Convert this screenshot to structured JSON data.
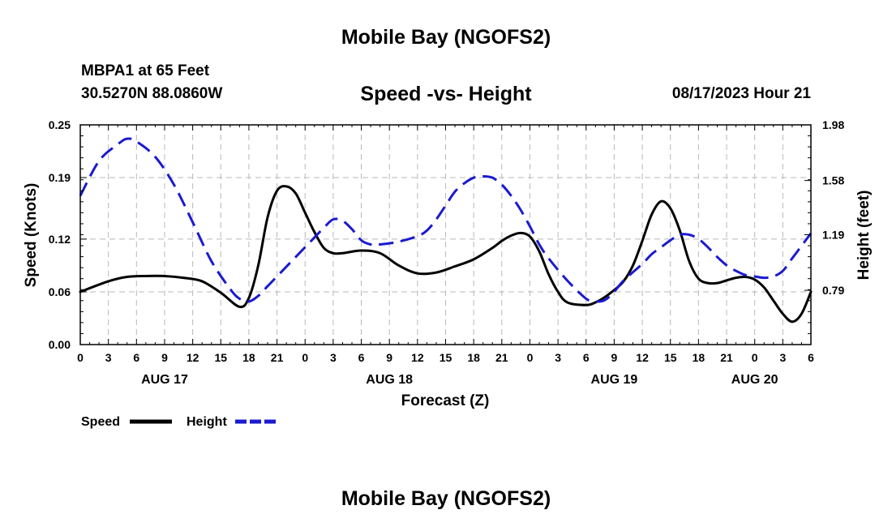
{
  "header": {
    "title": "Mobile Bay (NGOFS2)",
    "station": "MBPA1 at 65 Feet",
    "coords": "30.5270N  88.0860W",
    "subtitle": "Speed -vs- Height",
    "datetime": "08/17/2023 Hour 21"
  },
  "footer": {
    "title": "Mobile Bay (NGOFS2)"
  },
  "chart_data": {
    "type": "line",
    "xlabel": "Forecast (Z)",
    "x_unit": "hours from 00Z AUG 17",
    "xlim": [
      0,
      78
    ],
    "x_tick_labels": [
      "0",
      "3",
      "6",
      "9",
      "12",
      "15",
      "18",
      "21",
      "0",
      "3",
      "6",
      "9",
      "12",
      "15",
      "18",
      "21",
      "0",
      "3",
      "6",
      "9",
      "12",
      "15",
      "18",
      "21",
      "0",
      "3",
      "6"
    ],
    "date_labels": [
      {
        "text": "AUG 17",
        "hour": 9
      },
      {
        "text": "AUG 18",
        "hour": 33
      },
      {
        "text": "AUG 19",
        "hour": 57
      },
      {
        "text": "AUG 20",
        "hour": 72
      }
    ],
    "y_left": {
      "label": "Speed (Knots)",
      "lim": [
        0,
        0.25
      ],
      "ticks": [
        0.0,
        0.06,
        0.12,
        0.19,
        0.25
      ],
      "tick_labels": [
        "0.00",
        "0.06",
        "0.12",
        "0.19",
        "0.25"
      ]
    },
    "y_right": {
      "label": "Height (feet)",
      "lim": [
        0.4,
        1.98
      ],
      "ticks": [
        0.79,
        1.19,
        1.58,
        1.98
      ],
      "tick_labels": [
        "0.79",
        "1.19",
        "1.58",
        "1.98"
      ]
    },
    "grid": true,
    "series": [
      {
        "name": "Speed",
        "axis": "left",
        "color": "#000000",
        "style": "solid",
        "x": [
          0,
          3,
          5,
          7,
          9,
          11,
          13,
          15,
          17,
          18,
          19,
          20,
          21,
          22,
          23,
          24,
          25,
          26,
          27,
          28,
          30,
          32,
          34,
          36,
          38,
          40,
          42,
          44,
          45,
          46,
          47,
          48,
          49,
          50,
          51,
          52,
          54,
          55,
          56,
          57,
          58,
          59,
          60,
          61,
          62,
          63,
          64,
          65,
          66,
          67,
          68,
          69,
          70,
          71,
          72,
          73,
          74,
          75,
          76,
          77,
          78
        ],
        "y": [
          0.06,
          0.072,
          0.077,
          0.078,
          0.078,
          0.076,
          0.072,
          0.059,
          0.043,
          0.053,
          0.09,
          0.145,
          0.175,
          0.18,
          0.172,
          0.15,
          0.128,
          0.11,
          0.104,
          0.104,
          0.107,
          0.104,
          0.09,
          0.081,
          0.082,
          0.089,
          0.097,
          0.11,
          0.118,
          0.124,
          0.127,
          0.123,
          0.106,
          0.08,
          0.06,
          0.048,
          0.045,
          0.048,
          0.054,
          0.062,
          0.072,
          0.09,
          0.118,
          0.148,
          0.163,
          0.155,
          0.13,
          0.095,
          0.075,
          0.07,
          0.07,
          0.073,
          0.076,
          0.077,
          0.074,
          0.065,
          0.05,
          0.035,
          0.026,
          0.035,
          0.06
        ]
      },
      {
        "name": "Height",
        "axis": "right",
        "color": "#1a1ad0",
        "style": "dashed",
        "x": [
          0,
          2,
          4,
          5,
          6,
          8,
          10,
          12,
          14,
          16,
          17,
          18,
          19,
          20,
          22,
          24,
          26,
          27,
          28,
          29,
          30,
          31,
          32,
          34,
          36,
          37,
          38,
          39,
          40,
          41,
          42,
          43,
          44,
          45,
          46,
          47,
          48,
          49,
          50,
          52,
          54,
          55,
          56,
          57,
          58,
          60,
          61,
          62,
          63,
          64,
          65,
          66,
          67,
          68,
          69,
          70,
          71,
          72,
          73,
          74,
          75,
          76,
          77,
          78
        ],
        "y": [
          1.47,
          1.72,
          1.84,
          1.88,
          1.86,
          1.75,
          1.55,
          1.28,
          1.0,
          0.8,
          0.73,
          0.71,
          0.75,
          0.82,
          0.96,
          1.1,
          1.24,
          1.3,
          1.29,
          1.23,
          1.15,
          1.12,
          1.12,
          1.14,
          1.18,
          1.22,
          1.3,
          1.4,
          1.5,
          1.56,
          1.6,
          1.61,
          1.6,
          1.55,
          1.47,
          1.37,
          1.25,
          1.12,
          1.02,
          0.86,
          0.73,
          0.71,
          0.72,
          0.78,
          0.86,
          0.98,
          1.05,
          1.1,
          1.15,
          1.19,
          1.19,
          1.16,
          1.1,
          1.03,
          0.97,
          0.93,
          0.9,
          0.89,
          0.88,
          0.89,
          0.93,
          1.02,
          1.11,
          1.2
        ]
      }
    ],
    "legend": {
      "position": "bottom-left",
      "entries": [
        "Speed",
        "Height"
      ]
    }
  }
}
